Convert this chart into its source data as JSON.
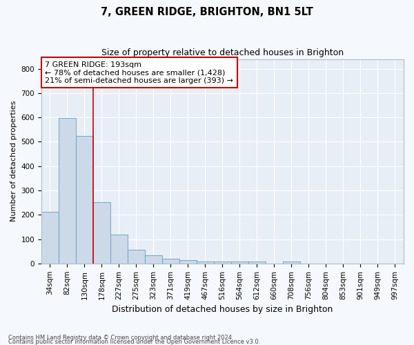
{
  "title1": "7, GREEN RIDGE, BRIGHTON, BN1 5LT",
  "title2": "Size of property relative to detached houses in Brighton",
  "xlabel": "Distribution of detached houses by size in Brighton",
  "ylabel": "Number of detached properties",
  "categories": [
    "34sqm",
    "82sqm",
    "130sqm",
    "178sqm",
    "227sqm",
    "275sqm",
    "323sqm",
    "371sqm",
    "419sqm",
    "467sqm",
    "516sqm",
    "564sqm",
    "612sqm",
    "660sqm",
    "708sqm",
    "756sqm",
    "804sqm",
    "853sqm",
    "901sqm",
    "949sqm",
    "997sqm"
  ],
  "values": [
    213,
    598,
    525,
    253,
    118,
    55,
    33,
    20,
    14,
    9,
    8,
    8,
    8,
    0,
    8,
    0,
    0,
    0,
    0,
    0,
    0
  ],
  "bar_color": "#ccd9e8",
  "bar_edge_color": "#6699bb",
  "red_line_x": 2.5,
  "annotation_text1": "7 GREEN RIDGE: 193sqm",
  "annotation_text2": "← 78% of detached houses are smaller (1,428)",
  "annotation_text3": "21% of semi-detached houses are larger (393) →",
  "annotation_box_facecolor": "#ffffff",
  "annotation_box_edgecolor": "#cc0000",
  "red_line_color": "#cc0000",
  "ylim": [
    0,
    840
  ],
  "yticks": [
    0,
    100,
    200,
    300,
    400,
    500,
    600,
    700,
    800
  ],
  "footer1": "Contains HM Land Registry data © Crown copyright and database right 2024.",
  "footer2": "Contains public sector information licensed under the Open Government Licence v3.0.",
  "fig_facecolor": "#f5f8fc",
  "plot_facecolor": "#e8eef5",
  "grid_color": "#ffffff",
  "spine_color": "#aabbcc",
  "title1_fontsize": 10.5,
  "title2_fontsize": 9,
  "ylabel_fontsize": 8,
  "xlabel_fontsize": 9,
  "tick_fontsize": 7.5,
  "ann_fontsize": 8
}
